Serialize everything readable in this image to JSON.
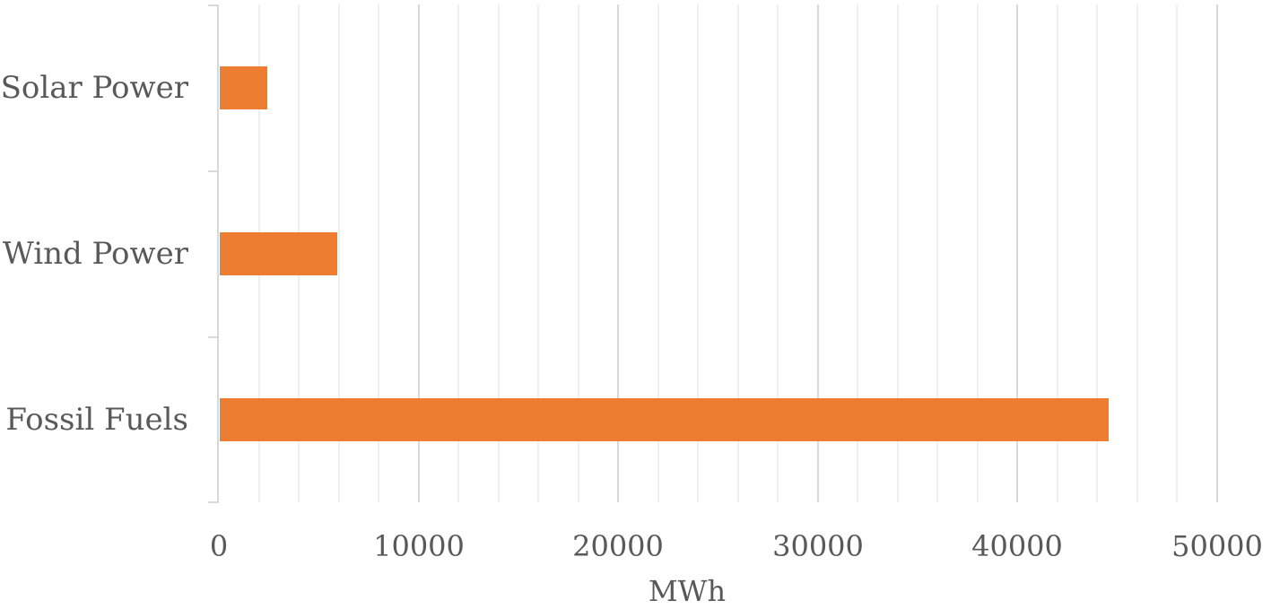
{
  "chart_data": {
    "type": "bar",
    "orientation": "horizontal",
    "categories": [
      "Solar Power",
      "Wind Power",
      "Fossil Fuels"
    ],
    "values": [
      2400,
      5900,
      44500
    ],
    "title": "",
    "xlabel": "MWh",
    "ylabel": "",
    "xlim": [
      0,
      50000
    ],
    "xticks": [
      "0",
      "10000",
      "20000",
      "30000",
      "40000",
      "50000"
    ],
    "grid": "vertical, minor every 2000",
    "legend": "none",
    "bar_color": "#ed7d31"
  }
}
